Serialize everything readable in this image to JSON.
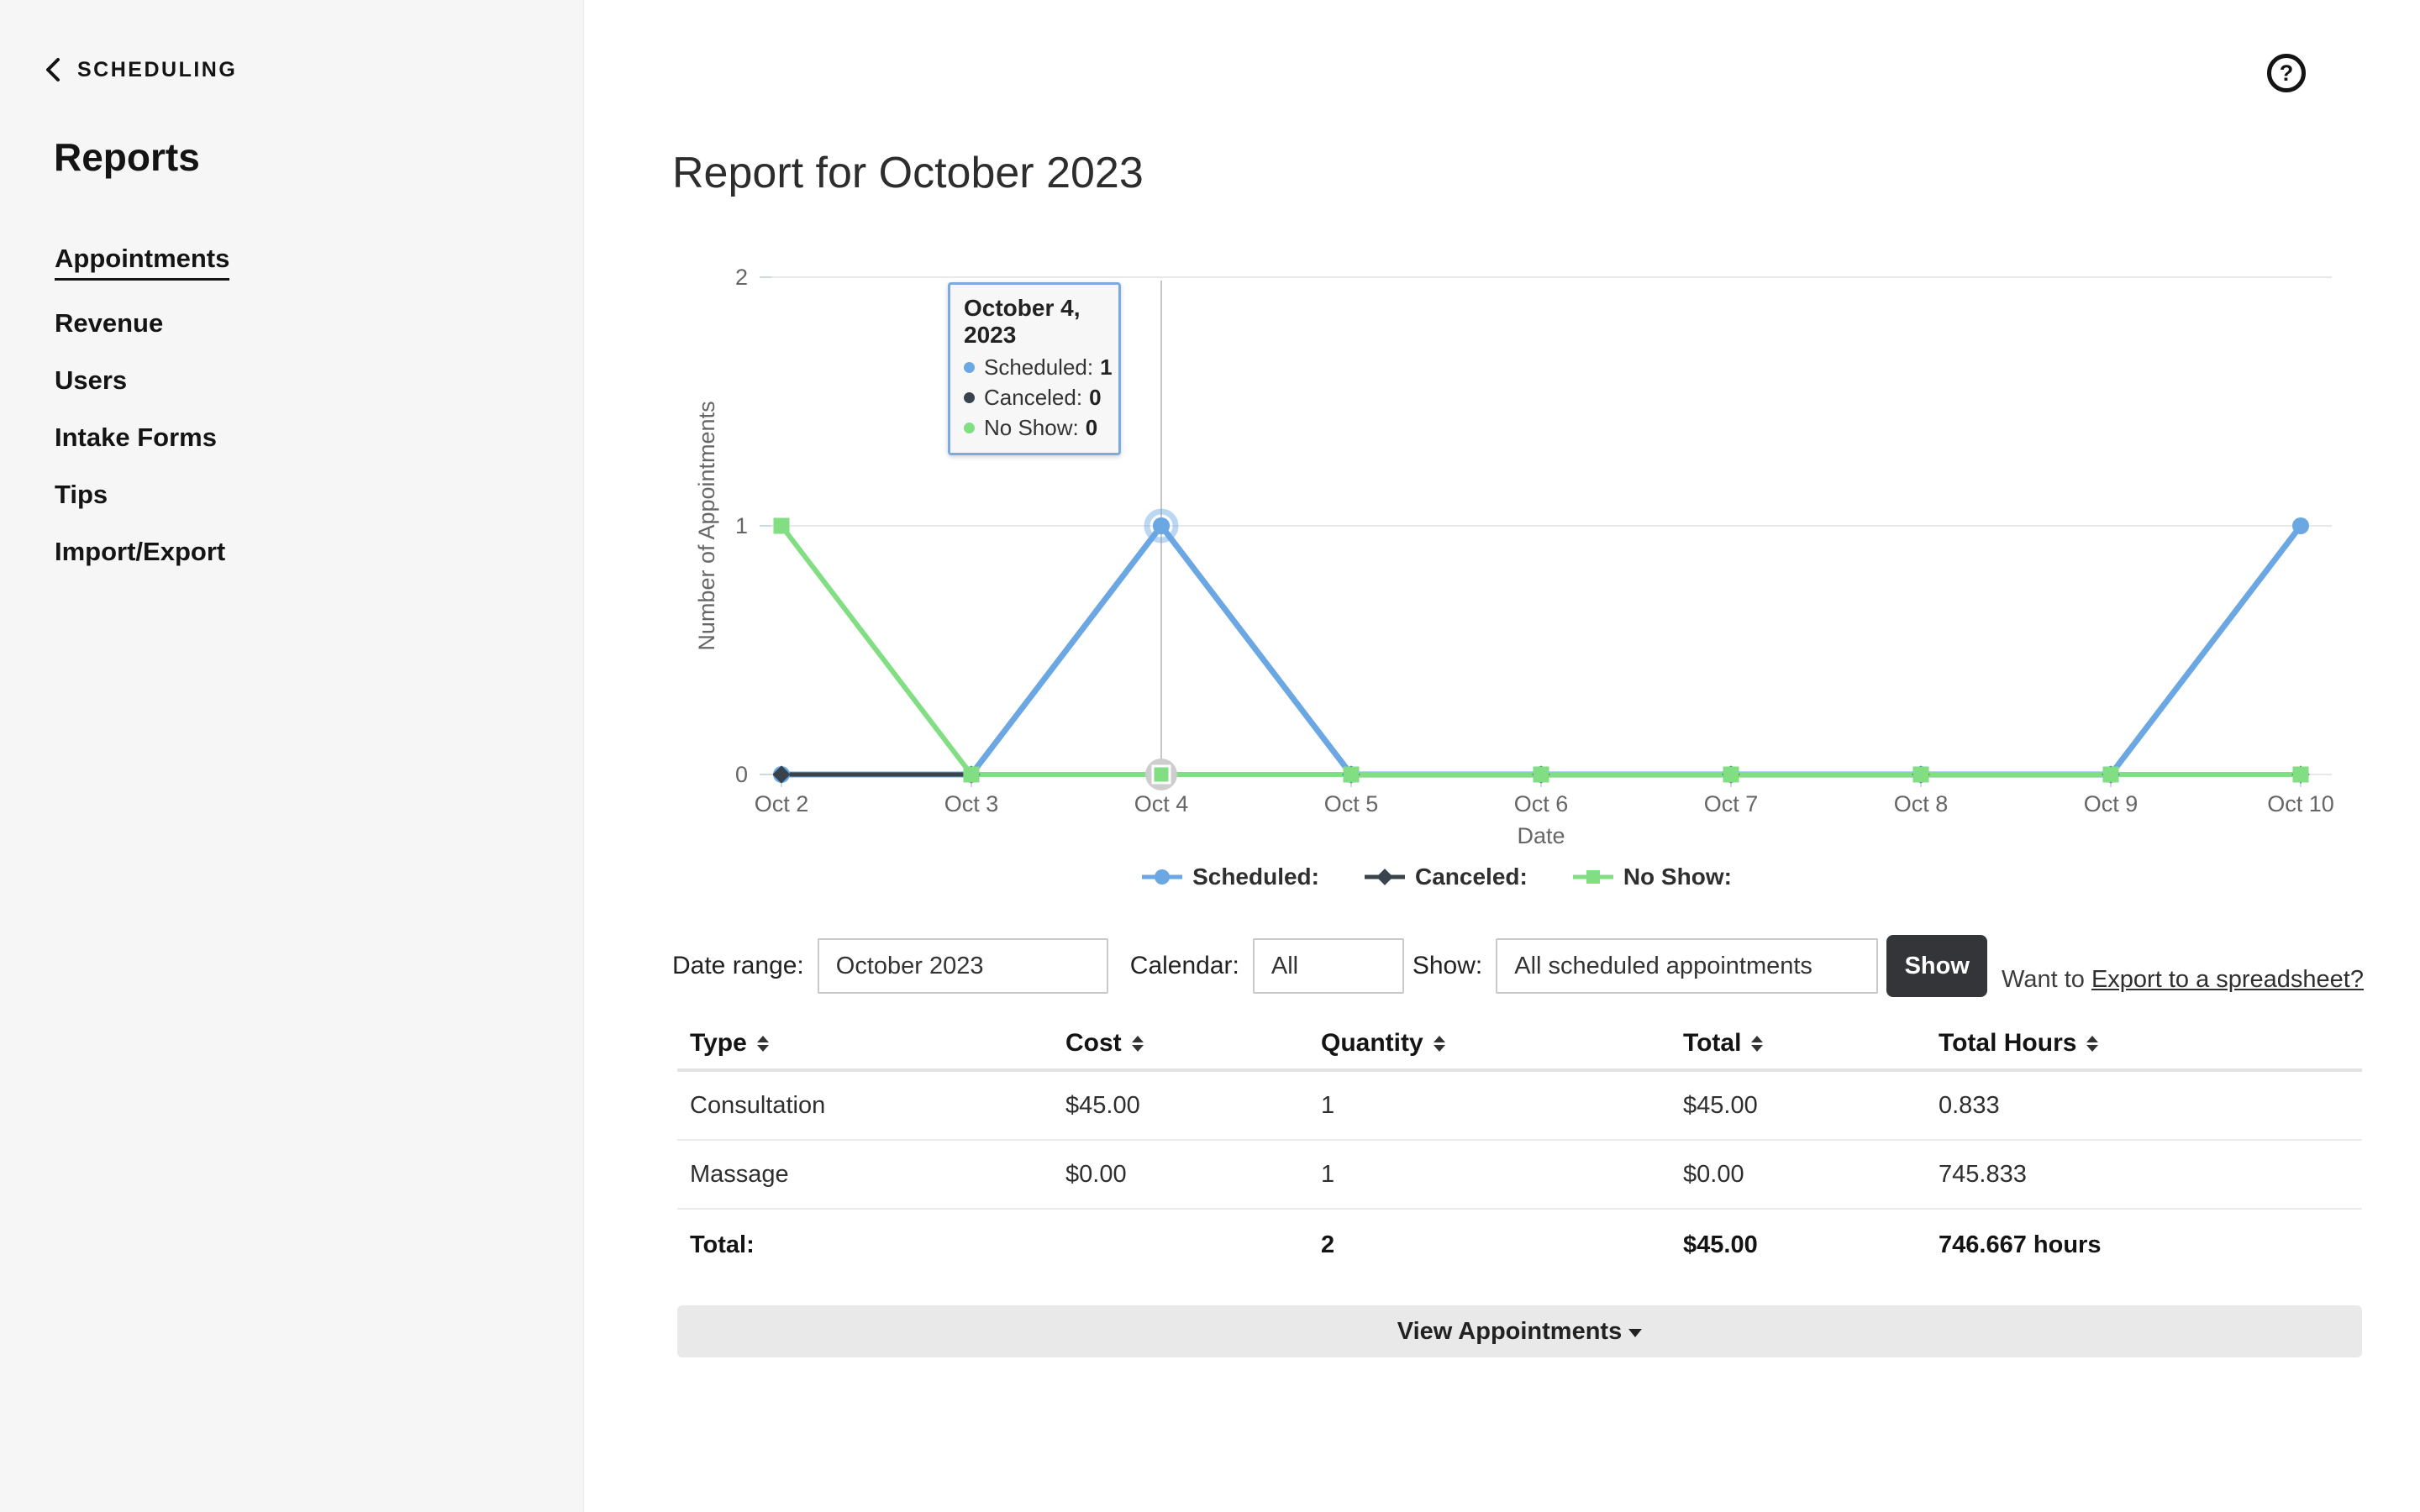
{
  "app": {
    "help_glyph": "?"
  },
  "sidebar": {
    "back_label": "SCHEDULING",
    "title": "Reports",
    "items": [
      {
        "label": "Appointments",
        "active": true
      },
      {
        "label": "Revenue",
        "active": false
      },
      {
        "label": "Users",
        "active": false
      },
      {
        "label": "Intake Forms",
        "active": false
      },
      {
        "label": "Tips",
        "active": false
      },
      {
        "label": "Import/Export",
        "active": false
      }
    ]
  },
  "main": {
    "title": "Report for October 2023"
  },
  "chart_data": {
    "type": "line",
    "x": [
      "Oct 2",
      "Oct 3",
      "Oct 4",
      "Oct 5",
      "Oct 6",
      "Oct 7",
      "Oct 8",
      "Oct 9",
      "Oct 10"
    ],
    "series": [
      {
        "name": "Scheduled:",
        "color": "#6aa7e3",
        "marker": "circle",
        "values": [
          0,
          0,
          1,
          0,
          0,
          0,
          0,
          0,
          1
        ]
      },
      {
        "name": "Canceled:",
        "color": "#39434b",
        "marker": "diamond",
        "values": [
          0,
          0,
          0,
          0,
          0,
          0,
          0,
          0,
          0
        ]
      },
      {
        "name": "No Show:",
        "color": "#82de82",
        "marker": "square",
        "values": [
          1,
          0,
          0,
          0,
          0,
          0,
          0,
          0,
          0
        ]
      }
    ],
    "xlabel": "Date",
    "ylabel": "Number of Appointments",
    "ylim": [
      0,
      2
    ],
    "yticks": [
      0,
      1,
      2
    ],
    "grid": true,
    "legend_position": "bottom-center",
    "highlight": {
      "x": "Oct 4",
      "crosshair": true,
      "tooltip": {
        "title": "October 4, 2023",
        "rows": [
          {
            "label": "Scheduled:",
            "value": "1",
            "color": "#6aa7e3"
          },
          {
            "label": "Canceled:",
            "value": "0",
            "color": "#39434b"
          },
          {
            "label": "No Show:",
            "value": "0",
            "color": "#82de82"
          }
        ]
      }
    }
  },
  "filters": {
    "date_range_label": "Date range:",
    "date_range_value": "October 2023",
    "calendar_label": "Calendar:",
    "calendar_value": "All",
    "show_label": "Show:",
    "show_value": "All scheduled appointments",
    "show_button": "Show",
    "export_prefix": "Want to ",
    "export_link": "Export to a spreadsheet?"
  },
  "table": {
    "columns": [
      "Type",
      "Cost",
      "Quantity",
      "Total",
      "Total Hours"
    ],
    "rows": [
      [
        "Consultation",
        "$45.00",
        "1",
        "$45.00",
        "0.833"
      ],
      [
        "Massage",
        "$0.00",
        "1",
        "$0.00",
        "745.833"
      ]
    ],
    "total_row": [
      "Total:",
      "",
      "2",
      "$45.00",
      "746.667 hours"
    ]
  },
  "actions": {
    "view_appointments": "View Appointments"
  }
}
